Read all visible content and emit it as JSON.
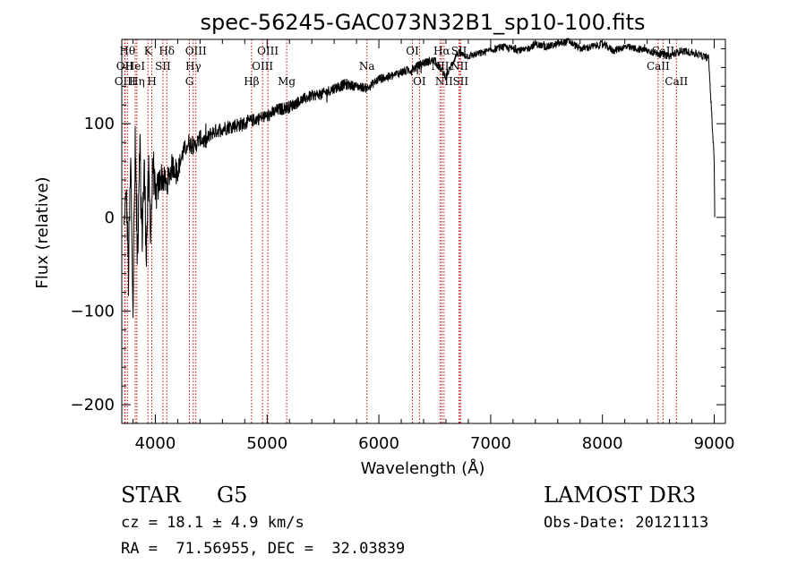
{
  "chart_data": {
    "type": "line",
    "title": "spec-56245-GAC073N32B1_sp10-100.fits",
    "xlabel": "Wavelength (Å)",
    "ylabel": "Flux (relative)",
    "xlim": [
      3700,
      9100
    ],
    "ylim": [
      -220,
      190
    ],
    "xticks": [
      4000,
      5000,
      6000,
      7000,
      8000,
      9000
    ],
    "xtick_labels": [
      "4000",
      "5000",
      "6000",
      "7000",
      "8000",
      "9000"
    ],
    "yticks": [
      -200,
      -100,
      0,
      100
    ],
    "ytick_labels": [
      "−200",
      "−100",
      "0",
      "100"
    ],
    "series": [
      {
        "name": "flux",
        "x": [
          3720,
          3740,
          3760,
          3780,
          3800,
          3820,
          3840,
          3860,
          3880,
          3900,
          3920,
          3940,
          3960,
          3980,
          4000,
          4050,
          4100,
          4150,
          4200,
          4250,
          4300,
          4350,
          4400,
          4450,
          4500,
          4600,
          4700,
          4800,
          4900,
          5000,
          5100,
          5200,
          5300,
          5400,
          5500,
          5600,
          5700,
          5800,
          5900,
          6000,
          6100,
          6200,
          6300,
          6400,
          6500,
          6600,
          6700,
          6800,
          6900,
          7000,
          7100,
          7200,
          7300,
          7400,
          7500,
          7600,
          7700,
          7800,
          7900,
          8000,
          8100,
          8200,
          8300,
          8400,
          8500,
          8600,
          8700,
          8800,
          8900,
          8950,
          9000,
          9005
        ],
        "y": [
          -10,
          30,
          -60,
          60,
          -90,
          70,
          -40,
          90,
          -20,
          50,
          -30,
          40,
          -10,
          60,
          20,
          45,
          35,
          55,
          50,
          70,
          80,
          75,
          85,
          80,
          90,
          95,
          98,
          100,
          105,
          108,
          115,
          118,
          125,
          130,
          132,
          138,
          142,
          140,
          138,
          148,
          150,
          155,
          158,
          165,
          168,
          150,
          175,
          172,
          175,
          178,
          182,
          180,
          178,
          185,
          182,
          185,
          188,
          180,
          182,
          185,
          178,
          182,
          180,
          178,
          175,
          172,
          178,
          176,
          172,
          170,
          60,
          0
        ],
        "noise": [
          6,
          12,
          35,
          20,
          40,
          30,
          40,
          30,
          35,
          30,
          30,
          28,
          26,
          24,
          20,
          16,
          15,
          14,
          12,
          10,
          10,
          9,
          9,
          9,
          8,
          8,
          8,
          8,
          7,
          7,
          7,
          7,
          6,
          6,
          6,
          6,
          6,
          5,
          5,
          5,
          5,
          5,
          5,
          5,
          4,
          4,
          4,
          4,
          4,
          4,
          4,
          4,
          4,
          4,
          4,
          4,
          4,
          4,
          4,
          4,
          4,
          4,
          4,
          4,
          4,
          4,
          4,
          4,
          4,
          4,
          4,
          0
        ]
      }
    ],
    "spectral_lines": [
      {
        "name": "Hθ",
        "x": 3750,
        "row": 0
      },
      {
        "name": "OII",
        "x": 3727,
        "row": 1
      },
      {
        "name": "OIII",
        "x": 3730,
        "row": 2
      },
      {
        "name": "Hη",
        "x": 3835,
        "row": 2
      },
      {
        "name": "HeI",
        "x": 3820,
        "row": 1
      },
      {
        "name": "K",
        "x": 3934,
        "row": 0
      },
      {
        "name": "SII",
        "x": 4068,
        "row": 1
      },
      {
        "name": "H",
        "x": 3969,
        "row": 2
      },
      {
        "name": "Hδ",
        "x": 4102,
        "row": 0
      },
      {
        "name": "OIII",
        "x": 4363,
        "row": 0
      },
      {
        "name": "Hγ",
        "x": 4340,
        "row": 1
      },
      {
        "name": "G",
        "x": 4305,
        "row": 2
      },
      {
        "name": "Hβ",
        "x": 4861,
        "row": 2
      },
      {
        "name": "OIII",
        "x": 4959,
        "row": 1
      },
      {
        "name": "OIII",
        "x": 5007,
        "row": 0
      },
      {
        "name": "Mg",
        "x": 5175,
        "row": 2
      },
      {
        "name": "Na",
        "x": 5893,
        "row": 1
      },
      {
        "name": "OI",
        "x": 6300,
        "row": 0
      },
      {
        "name": "OI",
        "x": 6363,
        "row": 2
      },
      {
        "name": "Hα",
        "x": 6563,
        "row": 0
      },
      {
        "name": "NII",
        "x": 6548,
        "row": 1
      },
      {
        "name": "NII",
        "x": 6583,
        "row": 2
      },
      {
        "name": "SII",
        "x": 6717,
        "row": 0
      },
      {
        "name": "NII",
        "x": 6720,
        "row": 1
      },
      {
        "name": "SII",
        "x": 6731,
        "row": 2
      },
      {
        "name": "CaII",
        "x": 8542,
        "row": 0
      },
      {
        "name": "CaII",
        "x": 8498,
        "row": 1
      },
      {
        "name": "CaII",
        "x": 8662,
        "row": 2
      }
    ],
    "line_colors": {
      "spectrum": "#000000",
      "markers": "#cc0000",
      "axes": "#000000"
    }
  },
  "info": {
    "object_class": "STAR",
    "subclass": "G5",
    "cz": "cz = 18.1 ± 4.9 km/s",
    "coords": "RA =  71.56955, DEC =  32.03839",
    "survey": "LAMOST DR3",
    "obs_date": "Obs-Date: 20121113"
  }
}
